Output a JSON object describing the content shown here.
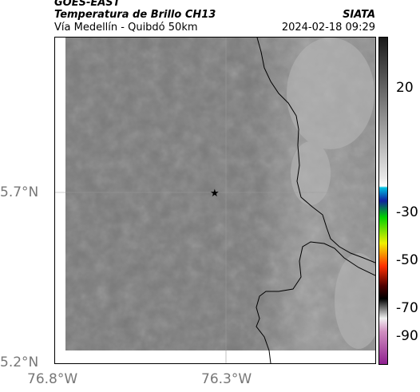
{
  "header": {
    "satellite": "GOES-EAST",
    "product": "Temperatura de Brillo CH13",
    "place": "Vía Medellín - Quibdó 50km",
    "org": "SIATA",
    "datetime": "2024-02-18 09:29"
  },
  "axes": {
    "lat_labels": [
      "5.7°N",
      "5.2°N"
    ],
    "lon_labels": [
      "76.8°W",
      "76.3°W"
    ]
  },
  "colorbar": {
    "labels": [
      "20",
      "-30",
      "-50",
      "-70",
      "-90"
    ]
  },
  "marker": {
    "name": "star-marker"
  },
  "colors": {
    "field": "#777777",
    "field_light": "#a8a8a8",
    "boundary": "#000000"
  }
}
